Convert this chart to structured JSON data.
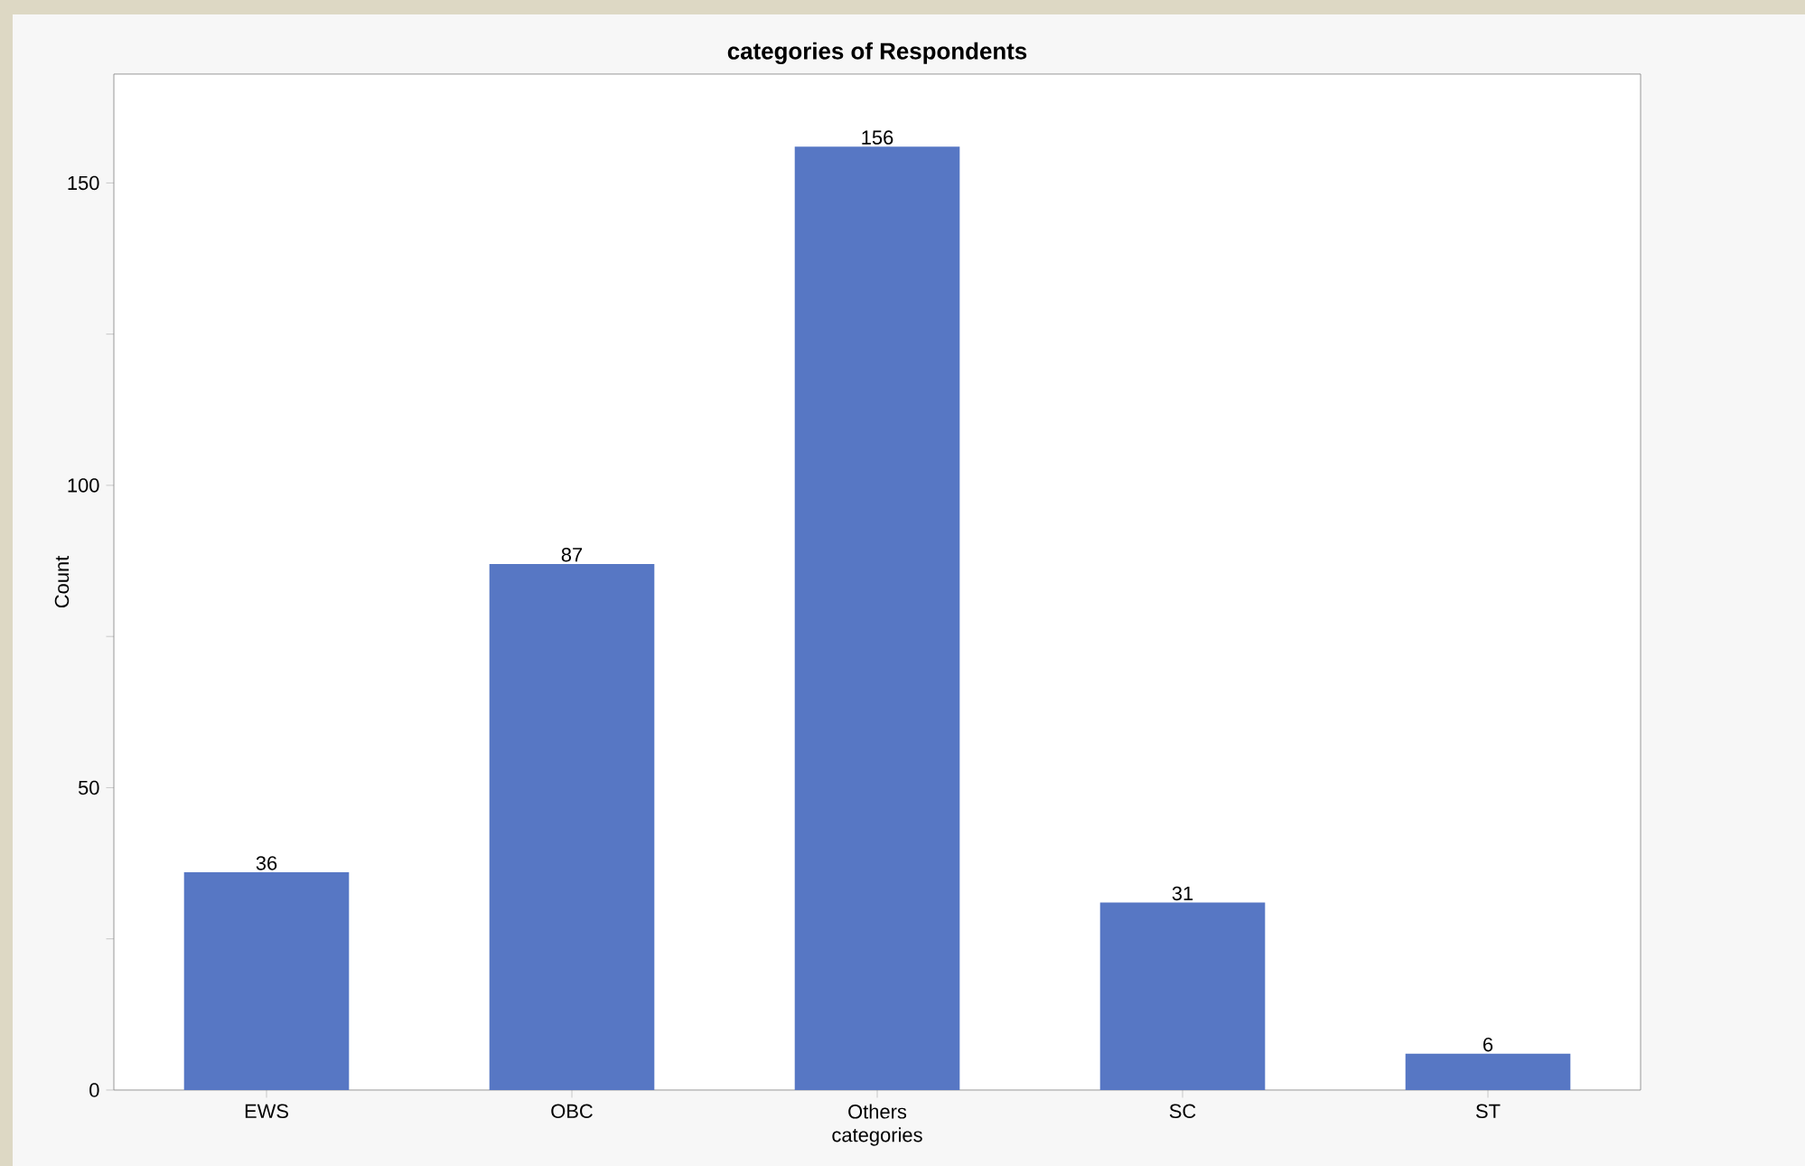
{
  "chart_data": {
    "type": "bar",
    "title": "categories of Respondents",
    "xlabel": "categories",
    "ylabel": "Count",
    "categories": [
      "EWS",
      "OBC",
      "Others",
      "SC",
      "ST"
    ],
    "values": [
      36,
      87,
      156,
      31,
      6
    ],
    "color": "#5777c4",
    "ylim": [
      0,
      168
    ],
    "yticks": [
      0,
      {
        "value": 25,
        "label": null
      },
      50,
      {
        "value": 75,
        "label": null
      },
      100,
      {
        "value": 125,
        "label": null
      },
      150
    ],
    "data_labels": true,
    "grid": false
  }
}
